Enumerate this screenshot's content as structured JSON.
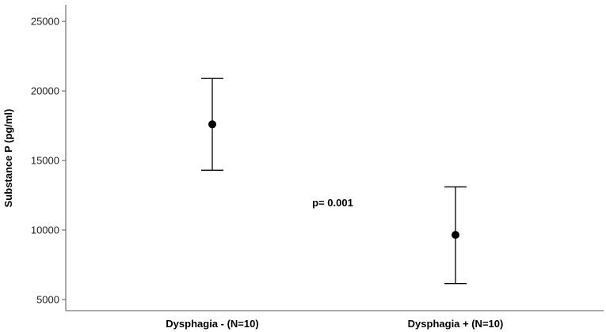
{
  "chart_data": {
    "type": "scatter",
    "title": "",
    "xlabel": "",
    "ylabel": "Substance P  (pg/ml)",
    "ylim": [
      4200,
      26200
    ],
    "yticks": [
      5000,
      10000,
      15000,
      20000,
      25000
    ],
    "categories": [
      "Dysphagia - (N=10)",
      "Dysphagia + (N=10)"
    ],
    "points": [
      {
        "category": "Dysphagia - (N=10)",
        "mean": 17600,
        "lower": 14300,
        "upper": 20900
      },
      {
        "category": "Dysphagia + (N=10)",
        "mean": 9650,
        "lower": 6150,
        "upper": 13100
      }
    ],
    "annotations": [
      {
        "text": "p= 0.001"
      }
    ],
    "grid": false,
    "colors": {
      "marker": "#000000",
      "axis": "#555555",
      "text": "#000000"
    }
  }
}
